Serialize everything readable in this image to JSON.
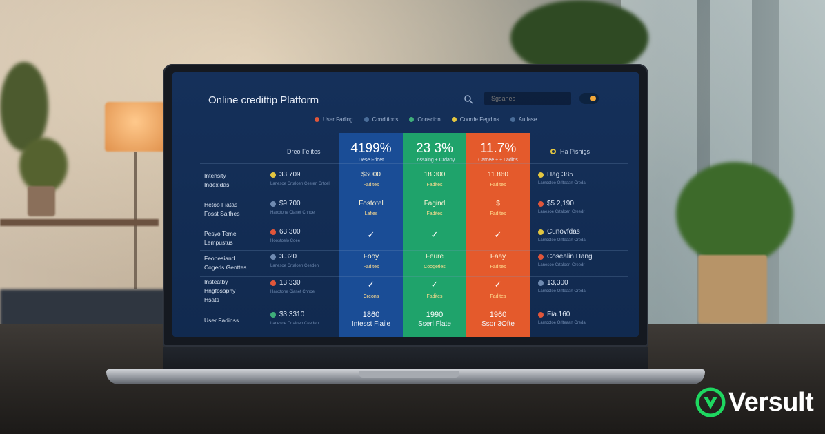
{
  "app": {
    "title": "Online credittip Platform",
    "search_placeholder": "Sgsahes",
    "search_icon": "search-icon"
  },
  "tabs": [
    {
      "label": "User Fading",
      "color": "#e0563a"
    },
    {
      "label": "Conditions",
      "color": "#4a6d99"
    },
    {
      "label": "Conscion",
      "color": "#3fae7a"
    },
    {
      "label": "Coorde Fegdins",
      "color": "#e3c640"
    },
    {
      "label": "Autlase",
      "color": "#4a6d99"
    }
  ],
  "table": {
    "left_header": "Dreo Feiites",
    "right_header": "Ha Pishigs",
    "columns": [
      {
        "pct": "4199%",
        "sub": "Dese Frioet",
        "color": "#1a4d96"
      },
      {
        "pct": "23 3%",
        "sub": "Lossaing + Crdany",
        "color": "#1fa36b"
      },
      {
        "pct": "11.7%",
        "sub": "Caroee + + Ladins",
        "color": "#e45a2c"
      }
    ],
    "rows": [
      {
        "label": "Intensity\nIndexidas",
        "metric": "33,709",
        "metric_color": "#e3c640",
        "desc": "Lanesoe Crtaloen Cesten Crtoel",
        "cells": [
          {
            "v": "$6000",
            "s": "Fadites"
          },
          {
            "v": "18.300",
            "s": "Fadites"
          },
          {
            "v": "11.860",
            "s": "Fadites"
          }
        ],
        "right_metric": "Hag 385",
        "right_color": "#e3c640",
        "right_desc": "Lamcctoe Orlteaan Creda"
      },
      {
        "label": "Hetoo Fiatas\nFosst Salthes",
        "metric": "$9,700",
        "metric_color": "#6f8ab0",
        "desc": "Haoxtone Cianet Chnoel",
        "cells": [
          {
            "v": "Fostotel",
            "s": "Lafies"
          },
          {
            "v": "Fagind",
            "s": "Fadites"
          },
          {
            "v": "$",
            "s": "Fadites"
          }
        ],
        "right_metric": "$5 2,190",
        "right_color": "#e0563a",
        "right_desc": "Lanesoe Crtaloen Creedr"
      },
      {
        "label": "Pesyo Teme\nLempustus",
        "metric": "63.300",
        "metric_color": "#e0563a",
        "desc": "Hoostoelo Coee",
        "cells": [
          {
            "check": "✓"
          },
          {
            "check": "✓"
          },
          {
            "check": "✓"
          }
        ],
        "right_metric": "Cunovfdas",
        "right_color": "#e3c640",
        "right_desc": "Lamcctoe Orlteaan Creda"
      },
      {
        "label": "Feopesiand\nCogeds Genttes",
        "metric": "3.320",
        "metric_color": "#6f8ab0",
        "desc": "Lanesoe Crtaloen Ceeden",
        "cells": [
          {
            "v": "Fooy",
            "s": "Fadites"
          },
          {
            "v": "Feure",
            "s": "Coogeties"
          },
          {
            "v": "Faay",
            "s": "Fadites"
          }
        ],
        "right_metric": "Cosealin Hang",
        "right_color": "#e0563a",
        "right_desc": "Lanesoe Crtaloen Creedr"
      },
      {
        "label": "Insteatby\nHngfosaphy\nHsats",
        "metric": "13,330",
        "metric_color": "#e0563a",
        "desc": "Haoxtone Cianet Chnoel",
        "cells": [
          {
            "check": "✓",
            "s": "Creons"
          },
          {
            "check": "✓",
            "s": "Fadites"
          },
          {
            "check": "✓",
            "s": "Fadites"
          }
        ],
        "right_metric": "13,300",
        "right_color": "#6f8ab0",
        "right_desc": "Lamcctoe Orlteaan Creda"
      },
      {
        "label": "User Fadinss",
        "metric": "$3,3310",
        "metric_color": "#3fae7a",
        "desc": "Lanesoe Crtaloen Ceeden",
        "right_metric": "Fia.160",
        "right_color": "#e0563a",
        "right_desc": "Lamcctoe Orlteaan Creda"
      }
    ],
    "footers": [
      {
        "v": "1860",
        "l": "Intesst Flaile"
      },
      {
        "v": "1990",
        "l": "Sserl Flate"
      },
      {
        "v": "1960",
        "l": "Ssor 3Ofte"
      }
    ]
  },
  "watermark": {
    "text": "Versult",
    "icon": "versult-logo-icon",
    "color": "#1ed760"
  }
}
